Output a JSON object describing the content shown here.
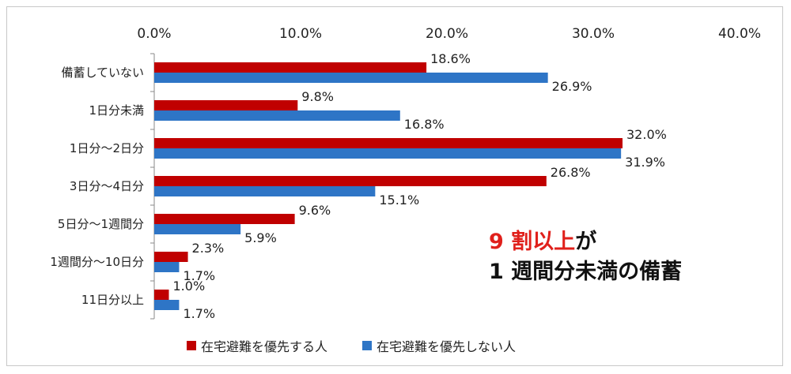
{
  "chart_data": {
    "type": "bar",
    "orientation": "horizontal",
    "categories": [
      "備蓄していない",
      "1日分未満",
      "1日分～2日分",
      "3日分～4日分",
      "5日分～1週間分",
      "1週間分～10日分",
      "11日分以上"
    ],
    "series": [
      {
        "name": "在宅避難を優先する人",
        "values": [
          18.6,
          9.8,
          32.0,
          26.8,
          9.6,
          2.3,
          1.0
        ],
        "labels": [
          "18.6%",
          "9.8%",
          "32.0%",
          "26.8%",
          "9.6%",
          "2.3%",
          "1.0%"
        ]
      },
      {
        "name": "在宅避難を優先しない人",
        "values": [
          26.9,
          16.8,
          31.9,
          15.1,
          5.9,
          1.7,
          1.7
        ],
        "labels": [
          "26.9%",
          "16.8%",
          "31.9%",
          "15.1%",
          "5.9%",
          "1.7%",
          "1.7%"
        ]
      }
    ],
    "xlim": [
      0,
      40
    ],
    "xticks": [
      "0.0%",
      "10.0%",
      "20.0%",
      "30.0%",
      "40.0%"
    ],
    "xaxis_position": "top",
    "grid": false,
    "legend_position": "bottom",
    "colors": [
      "#c00000",
      "#2e75c6"
    ]
  },
  "annotation": {
    "highlight": "9 割以上",
    "line1_rest": "が",
    "line2": "1 週間分未満の備蓄"
  }
}
